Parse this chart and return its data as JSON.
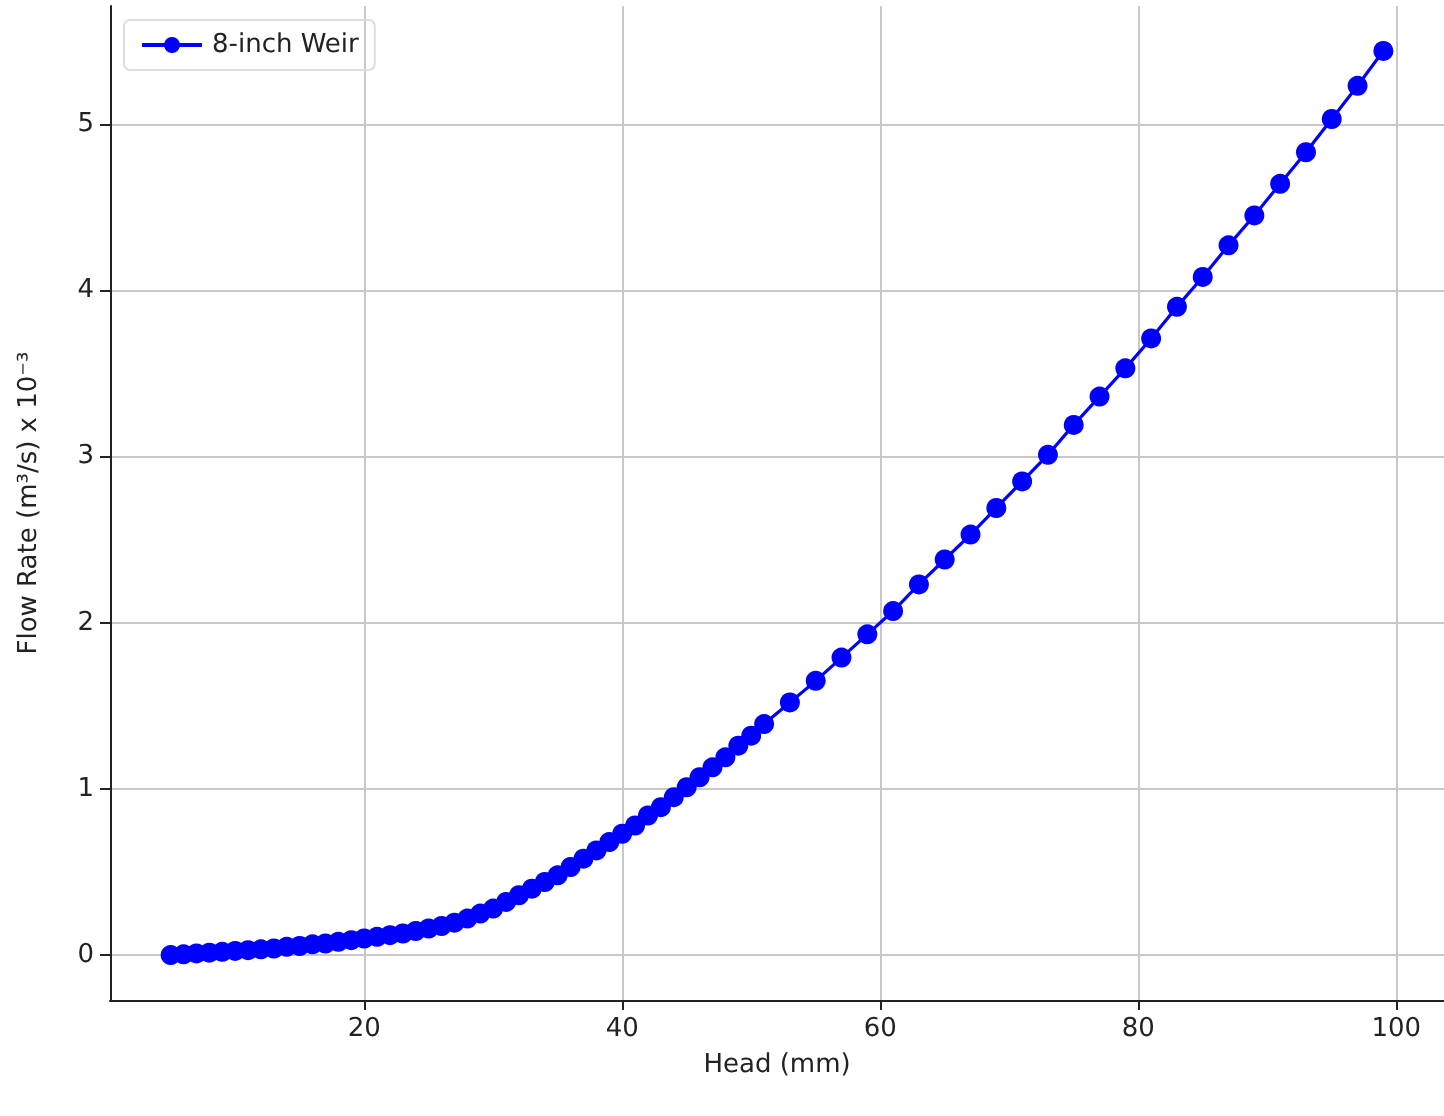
{
  "chart_data": {
    "type": "line",
    "xlabel": "Head (mm)",
    "ylabel": "Flow Rate (m³/s) x 10⁻³",
    "x": [
      5,
      6,
      7,
      8,
      9,
      10,
      11,
      12,
      13,
      14,
      15,
      16,
      17,
      18,
      19,
      20,
      21,
      22,
      23,
      24,
      25,
      26,
      27,
      28,
      29,
      30,
      31,
      32,
      33,
      34,
      35,
      36,
      37,
      38,
      39,
      40,
      41,
      42,
      43,
      44,
      45,
      46,
      47,
      48,
      49,
      50,
      51,
      53,
      55,
      57,
      59,
      61,
      63,
      65,
      67,
      69,
      71,
      73,
      75,
      77,
      79,
      81,
      83,
      85,
      87,
      89,
      91,
      93,
      95,
      97,
      99
    ],
    "series": [
      {
        "name": "8-inch Weir",
        "color": "#0000ff",
        "values": [
          0.0,
          0.005,
          0.01,
          0.015,
          0.02,
          0.025,
          0.03,
          0.035,
          0.04,
          0.05,
          0.055,
          0.065,
          0.07,
          0.08,
          0.09,
          0.1,
          0.11,
          0.12,
          0.13,
          0.145,
          0.16,
          0.175,
          0.195,
          0.22,
          0.25,
          0.28,
          0.32,
          0.36,
          0.4,
          0.44,
          0.48,
          0.53,
          0.58,
          0.63,
          0.68,
          0.73,
          0.78,
          0.84,
          0.89,
          0.95,
          1.01,
          1.07,
          1.13,
          1.19,
          1.26,
          1.32,
          1.39,
          1.52,
          1.65,
          1.79,
          1.93,
          2.07,
          2.23,
          2.38,
          2.53,
          2.69,
          2.85,
          3.01,
          3.19,
          3.36,
          3.53,
          3.71,
          3.9,
          4.08,
          4.27,
          4.45,
          4.64,
          4.83,
          5.03,
          5.23,
          5.44
        ]
      }
    ],
    "xlim": [
      0.3,
      103.7
    ],
    "ylim": [
      -0.27,
      5.71
    ],
    "xticks": [
      20,
      40,
      60,
      80,
      100
    ],
    "yticks": [
      0,
      1,
      2,
      3,
      4,
      5
    ],
    "grid": true,
    "legend": "top left",
    "marker": "circle",
    "line_style": "solid"
  }
}
